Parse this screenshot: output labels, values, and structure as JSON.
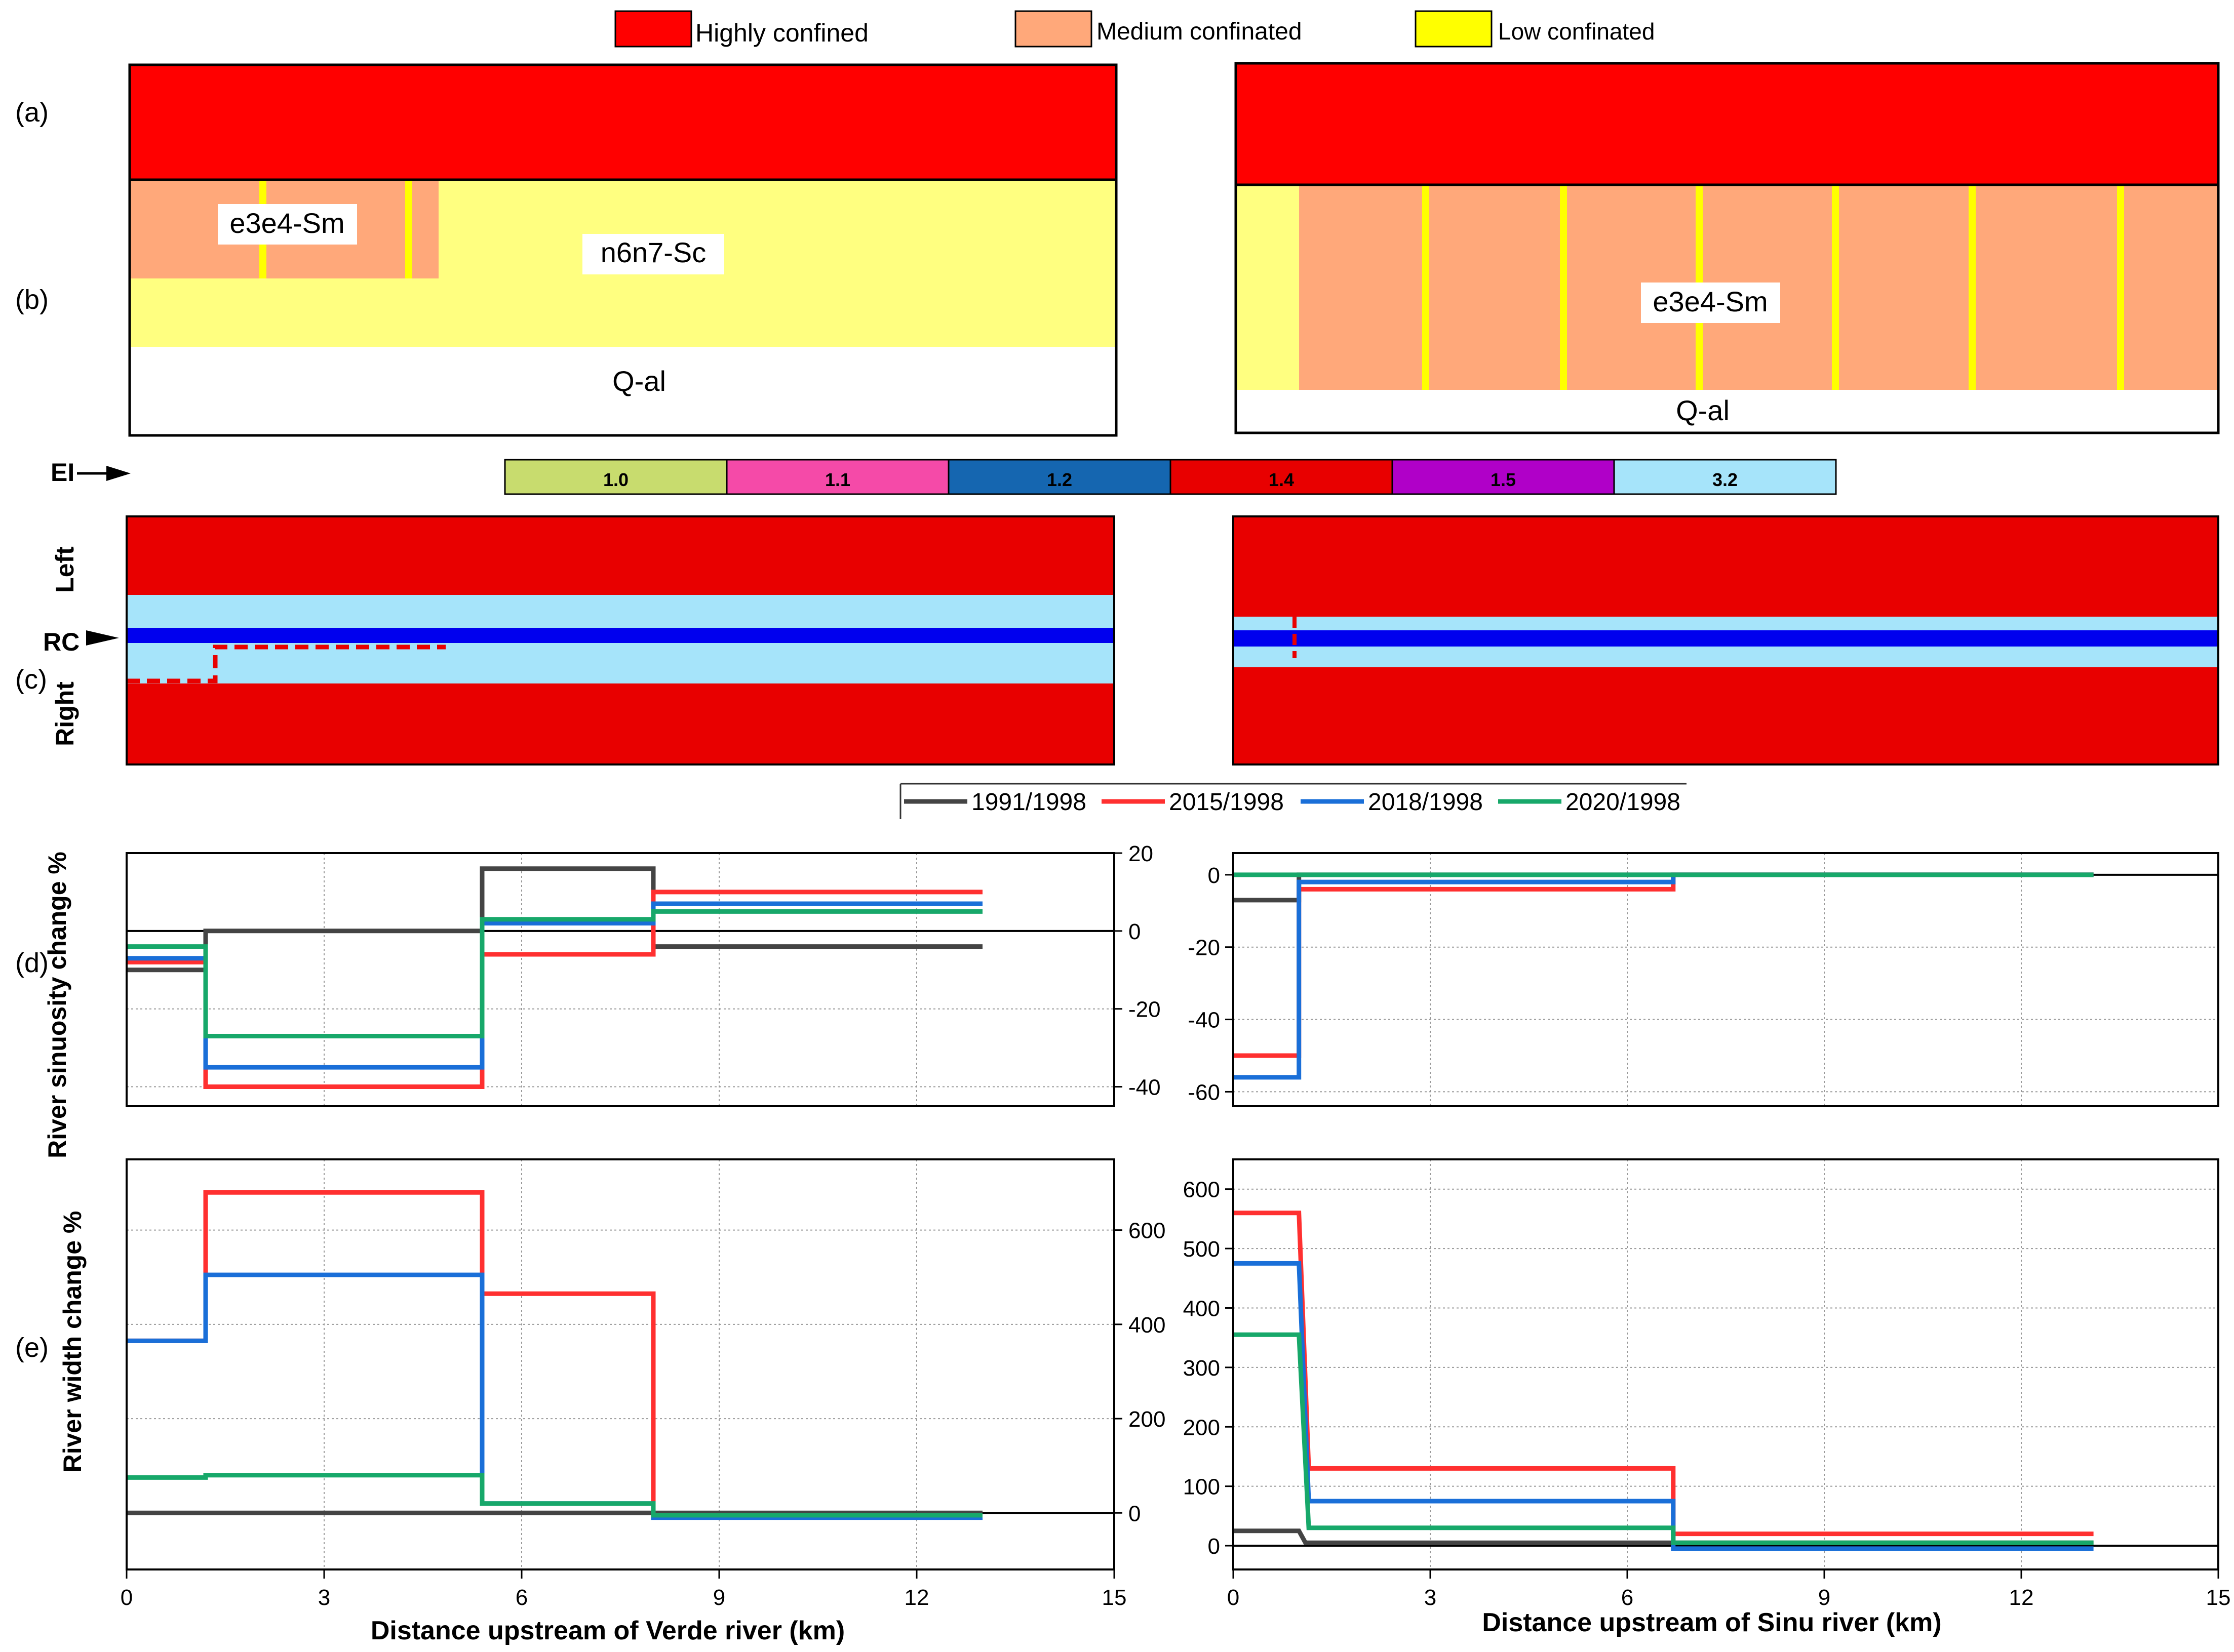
{
  "colors": {
    "highly": "#ff0000",
    "medium": "#ffa87a",
    "low": "#ffff00",
    "pale_yellow": "#ffff80",
    "ei_10": "#c8dc6e",
    "ei_11": "#f54aa8",
    "ei_12": "#1566b0",
    "ei_14": "#e80000",
    "ei_15": "#b000c8",
    "ei_32": "#a6e4fa",
    "rc_red": "#e80000",
    "rc_light": "#a6e4fa",
    "rc_channel": "#0000ee",
    "s1991": "#444444",
    "s2015": "#ff3030",
    "s2018": "#1a6fd8",
    "s2020": "#17a86a"
  },
  "legend_top": {
    "items": [
      {
        "label": "Highly confined",
        "color_key": "highly"
      },
      {
        "label": "Medium confinated",
        "color_key": "medium"
      },
      {
        "label": "Low confinated",
        "color_key": "low"
      }
    ]
  },
  "row_labels": {
    "a": "(a)",
    "b": "(b)",
    "c": "(c)",
    "d": "(d)",
    "e": "(e)",
    "ei": "EI",
    "left": "Left",
    "rc": "RC",
    "right": "Right"
  },
  "geology": {
    "verde": {
      "unit1": "e3e4-Sm",
      "unit2": "n6n7-Sc",
      "unit3": "Q-al"
    },
    "sinu": {
      "unit1": "e3e4-Sm",
      "unit2": "Q-al"
    }
  },
  "ei_scale": [
    {
      "label": "1.0",
      "color_key": "ei_10"
    },
    {
      "label": "1.1",
      "color_key": "ei_11"
    },
    {
      "label": "1.2",
      "color_key": "ei_12"
    },
    {
      "label": "1.4",
      "color_key": "ei_14"
    },
    {
      "label": "1.5",
      "color_key": "ei_15"
    },
    {
      "label": "3.2",
      "color_key": "ei_32"
    }
  ],
  "chart_data": [
    {
      "id": "sinuosity-verde",
      "type": "line",
      "step": true,
      "ylabel": "River  sinuosity change %",
      "xlim": [
        0,
        15
      ],
      "ylim": [
        -45,
        20
      ],
      "yticks": [
        -40,
        -20,
        0,
        20
      ],
      "ytick_labels": [
        "-40",
        "-20",
        "0",
        "20"
      ],
      "series": [
        {
          "name": "1991/1998",
          "color_key": "s1991",
          "x": [
            0,
            1.2,
            1.2,
            5.4,
            5.4,
            8.0,
            8.0,
            13
          ],
          "y": [
            -10,
            -10,
            0,
            0,
            16,
            16,
            -4,
            -4
          ]
        },
        {
          "name": "2015/1998",
          "color_key": "s2015",
          "x": [
            0,
            1.2,
            1.2,
            5.4,
            5.4,
            8.0,
            8.0,
            13
          ],
          "y": [
            -8,
            -8,
            -40,
            -40,
            -6,
            -6,
            10,
            10
          ]
        },
        {
          "name": "2018/1998",
          "color_key": "s2018",
          "x": [
            0,
            1.2,
            1.2,
            5.4,
            5.4,
            8.0,
            8.0,
            13
          ],
          "y": [
            -7,
            -7,
            -35,
            -35,
            2,
            2,
            7,
            7
          ]
        },
        {
          "name": "2020/1998",
          "color_key": "s2020",
          "x": [
            0,
            1.2,
            1.2,
            5.4,
            5.4,
            8.0,
            8.0,
            13
          ],
          "y": [
            -4,
            -4,
            -27,
            -27,
            3,
            3,
            5,
            5
          ]
        }
      ]
    },
    {
      "id": "sinuosity-sinu",
      "type": "line",
      "step": true,
      "xlim": [
        0,
        15
      ],
      "ylim": [
        -64,
        6
      ],
      "yticks": [
        -60,
        -40,
        -20,
        0
      ],
      "ytick_labels": [
        "-60",
        "-40",
        "-20",
        "0"
      ],
      "series": [
        {
          "name": "1991/1998",
          "color_key": "s1991",
          "x": [
            0,
            1.0,
            1.0,
            6.7,
            6.7,
            13.1
          ],
          "y": [
            -7,
            -7,
            0,
            0,
            0,
            0
          ]
        },
        {
          "name": "2015/1998",
          "color_key": "s2015",
          "x": [
            0,
            1.0,
            1.0,
            6.7,
            6.7,
            13.1
          ],
          "y": [
            -50,
            -50,
            -4,
            -4,
            0,
            0
          ]
        },
        {
          "name": "2018/1998",
          "color_key": "s2018",
          "x": [
            0,
            1.0,
            1.0,
            6.7,
            6.7,
            13.1
          ],
          "y": [
            -56,
            -56,
            -2,
            -2,
            0,
            0
          ]
        },
        {
          "name": "2020/1998",
          "color_key": "s2020",
          "x": [
            0,
            1.0,
            1.0,
            6.7,
            6.7,
            13.1
          ],
          "y": [
            0,
            0,
            0,
            0,
            0,
            0
          ]
        }
      ]
    },
    {
      "id": "width-verde",
      "type": "line",
      "step": true,
      "ylabel": "River width change %",
      "xlabel": "Distance upstream of Verde river (km)",
      "xlim": [
        0,
        15
      ],
      "ylim": [
        -120,
        750
      ],
      "xticks": [
        0,
        3,
        6,
        9,
        12,
        15
      ],
      "xtick_labels": [
        "0",
        "3",
        "6",
        "9",
        "12",
        "15"
      ],
      "yticks": [
        0,
        200,
        400,
        600
      ],
      "ytick_labels": [
        "0",
        "200",
        "400",
        "600"
      ],
      "series": [
        {
          "name": "1991/1998",
          "color_key": "s1991",
          "x": [
            0,
            13
          ],
          "y": [
            0,
            0
          ]
        },
        {
          "name": "2015/1998",
          "color_key": "s2015",
          "x": [
            0,
            1.2,
            1.2,
            5.4,
            5.4,
            8.0,
            8.0,
            13
          ],
          "y": [
            365,
            365,
            680,
            680,
            465,
            465,
            -5,
            -5
          ]
        },
        {
          "name": "2018/1998",
          "color_key": "s2018",
          "x": [
            0,
            1.2,
            1.2,
            5.4,
            5.4,
            8.0,
            8.0,
            13
          ],
          "y": [
            365,
            365,
            505,
            505,
            20,
            20,
            -10,
            -10
          ]
        },
        {
          "name": "2020/1998",
          "color_key": "s2020",
          "x": [
            0,
            1.2,
            1.2,
            5.4,
            5.4,
            8.0,
            8.0,
            13
          ],
          "y": [
            75,
            75,
            80,
            80,
            20,
            20,
            -5,
            -5
          ]
        }
      ]
    },
    {
      "id": "width-sinu",
      "type": "line",
      "step": true,
      "xlabel": "Distance upstream of Sinu river (km)",
      "xlim": [
        0,
        15
      ],
      "ylim": [
        -40,
        650
      ],
      "xticks": [
        0,
        3,
        6,
        9,
        12,
        15
      ],
      "xtick_labels": [
        "0",
        "3",
        "6",
        "9",
        "12",
        "15"
      ],
      "yticks": [
        0,
        100,
        200,
        300,
        400,
        500,
        600
      ],
      "ytick_labels": [
        "0",
        "100",
        "200",
        "300",
        "400",
        "500",
        "600"
      ],
      "series": [
        {
          "name": "1991/1998",
          "color_key": "s1991",
          "x": [
            0,
            1.0,
            1.1,
            13.1
          ],
          "y": [
            25,
            25,
            5,
            5
          ]
        },
        {
          "name": "2015/1998",
          "color_key": "s2015",
          "x": [
            0,
            1.0,
            1.15,
            6.7,
            6.7,
            13.1
          ],
          "y": [
            560,
            560,
            130,
            130,
            20,
            20
          ]
        },
        {
          "name": "2018/1998",
          "color_key": "s2018",
          "x": [
            0,
            1.0,
            1.15,
            6.7,
            6.7,
            13.1
          ],
          "y": [
            475,
            475,
            75,
            75,
            -5,
            -5
          ]
        },
        {
          "name": "2020/1998",
          "color_key": "s2020",
          "x": [
            0,
            1.0,
            1.15,
            6.7,
            6.7,
            13.1
          ],
          "y": [
            355,
            355,
            30,
            30,
            5,
            5
          ]
        }
      ]
    }
  ]
}
